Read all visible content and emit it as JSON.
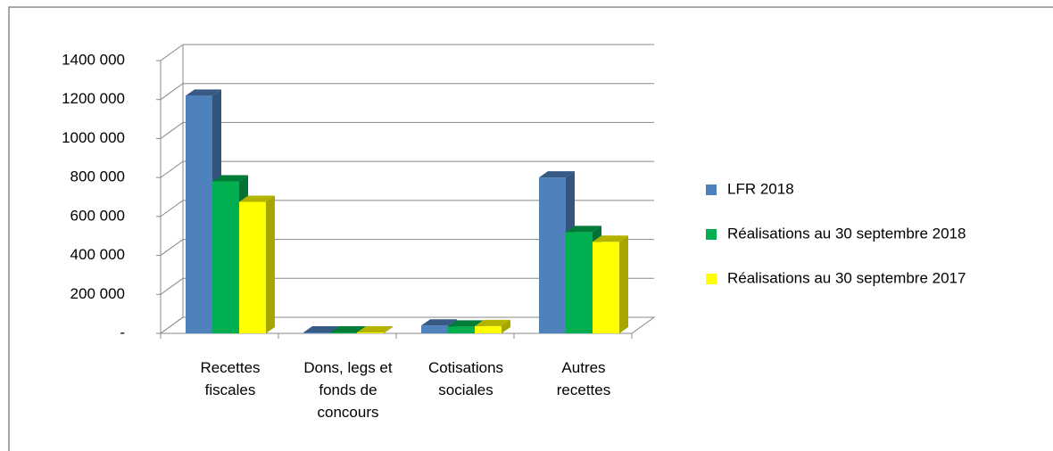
{
  "chart_data": {
    "type": "bar3d",
    "categories": [
      "Recettes fiscales",
      "Dons, legs et fonds de concours",
      "Cotisations sociales",
      "Autres recettes"
    ],
    "series": [
      {
        "name": "LFR 2018",
        "color": "#4f81bd",
        "values": [
          1220000,
          3000,
          40000,
          800000
        ]
      },
      {
        "name": "Réalisations au 30 septembre 2018",
        "color": "#00b050",
        "values": [
          780000,
          2000,
          35000,
          520000
        ]
      },
      {
        "name": "Réalisations au 30 septembre 2017",
        "color": "#ffff00",
        "values": [
          675000,
          2000,
          37000,
          470000
        ]
      }
    ],
    "ylim": [
      0,
      1400000
    ],
    "yticks": [
      {
        "value": 0,
        "label": "-"
      },
      {
        "value": 200000,
        "label": "200 000"
      },
      {
        "value": 400000,
        "label": "400 000"
      },
      {
        "value": 600000,
        "label": "600 000"
      },
      {
        "value": 800000,
        "label": "800 000"
      },
      {
        "value": 1000000,
        "label": "1000 000"
      },
      {
        "value": 1200000,
        "label": "1200 000"
      },
      {
        "value": 1400000,
        "label": "1400 000"
      }
    ],
    "grid": true,
    "legend": "right"
  }
}
